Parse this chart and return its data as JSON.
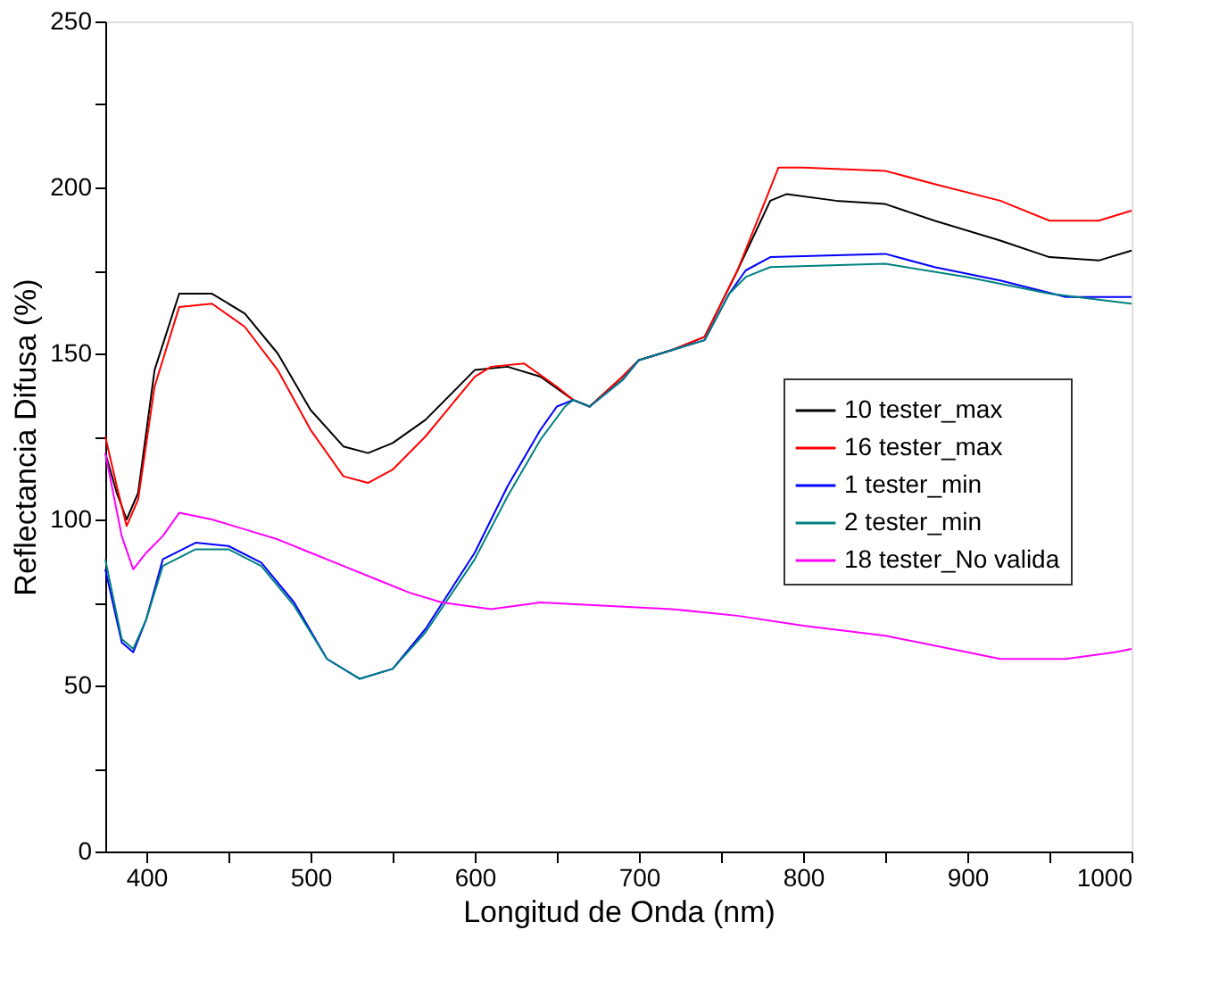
{
  "chart_data": {
    "type": "line",
    "xlabel": "Longitud de Onda (nm)",
    "ylabel": "Reflectancia Difusa (%)",
    "xlim": [
      375,
      1000
    ],
    "ylim": [
      0,
      250
    ],
    "xticks": [
      400,
      {
        "value": 450,
        "label": null
      },
      500,
      {
        "value": 550,
        "label": null
      },
      600,
      {
        "value": 650,
        "label": null
      },
      700,
      {
        "value": 750,
        "label": null
      },
      800,
      {
        "value": 850,
        "label": null
      },
      900,
      {
        "value": 950,
        "label": null
      },
      1000
    ],
    "yticks": [
      0,
      {
        "value": 25,
        "label": null
      },
      50,
      {
        "value": 75,
        "label": null
      },
      100,
      {
        "value": 125,
        "label": null
      },
      150,
      {
        "value": 175,
        "label": null
      },
      200,
      {
        "value": 225,
        "label": null
      },
      250
    ],
    "grid": false,
    "legend": "right",
    "line_style": "solid",
    "marker": "none",
    "series": [
      {
        "name": "10 tester_max",
        "color": "#000000",
        "x": [
          375,
          382,
          388,
          395,
          405,
          420,
          440,
          460,
          480,
          500,
          520,
          535,
          550,
          570,
          600,
          620,
          640,
          660,
          670,
          690,
          700,
          720,
          740,
          760,
          780,
          790,
          820,
          850,
          880,
          920,
          950,
          980,
          1000
        ],
        "values": [
          120,
          108,
          100,
          108,
          145,
          168,
          168,
          162,
          150,
          133,
          122,
          120,
          123,
          130,
          145,
          146,
          143,
          136,
          134,
          143,
          148,
          151,
          155,
          175,
          196,
          198,
          196,
          195,
          190,
          184,
          179,
          178,
          181
        ]
      },
      {
        "name": "16 tester_max",
        "color": "#ff0000",
        "x": [
          375,
          382,
          388,
          395,
          405,
          420,
          440,
          460,
          480,
          500,
          520,
          535,
          550,
          570,
          600,
          610,
          630,
          650,
          660,
          670,
          690,
          700,
          720,
          740,
          760,
          785,
          800,
          850,
          880,
          920,
          950,
          980,
          1000
        ],
        "values": [
          125,
          110,
          98,
          106,
          140,
          164,
          165,
          158,
          145,
          127,
          113,
          111,
          115,
          125,
          143,
          146,
          147,
          140,
          136,
          134,
          143,
          148,
          151,
          155,
          175,
          206,
          206,
          205,
          201,
          196,
          190,
          190,
          193
        ]
      },
      {
        "name": "1 tester_min",
        "color": "#0000ff",
        "x": [
          375,
          385,
          392,
          400,
          410,
          430,
          450,
          470,
          490,
          510,
          530,
          550,
          570,
          600,
          620,
          640,
          650,
          660,
          670,
          690,
          700,
          720,
          740,
          755,
          765,
          780,
          850,
          880,
          920,
          960,
          1000
        ],
        "values": [
          85,
          63,
          60,
          70,
          88,
          93,
          92,
          87,
          75,
          58,
          52,
          55,
          67,
          90,
          110,
          127,
          134,
          136,
          134,
          142,
          148,
          151,
          154,
          168,
          175,
          179,
          180,
          176,
          172,
          167,
          167
        ]
      },
      {
        "name": "2 tester_min",
        "color": "#008080",
        "x": [
          375,
          385,
          392,
          400,
          410,
          430,
          450,
          470,
          490,
          510,
          530,
          550,
          570,
          600,
          620,
          640,
          655,
          660,
          670,
          690,
          700,
          720,
          740,
          755,
          765,
          780,
          850,
          900,
          950,
          1000
        ],
        "values": [
          88,
          64,
          61,
          70,
          86,
          91,
          91,
          86,
          74,
          58,
          52,
          55,
          66,
          88,
          107,
          124,
          134,
          136,
          134,
          142,
          148,
          151,
          154,
          168,
          173,
          176,
          177,
          173,
          168,
          165
        ]
      },
      {
        "name": "18 tester_No valida",
        "color": "#ff00ff",
        "x": [
          375,
          385,
          392,
          400,
          410,
          420,
          440,
          460,
          480,
          500,
          520,
          540,
          560,
          580,
          610,
          640,
          680,
          720,
          760,
          800,
          850,
          900,
          920,
          960,
          990,
          1000
        ],
        "values": [
          120,
          95,
          85,
          90,
          95,
          102,
          100,
          97,
          94,
          90,
          86,
          82,
          78,
          75,
          73,
          75,
          74,
          73,
          71,
          68,
          65,
          60,
          58,
          58,
          60,
          61
        ]
      }
    ]
  }
}
